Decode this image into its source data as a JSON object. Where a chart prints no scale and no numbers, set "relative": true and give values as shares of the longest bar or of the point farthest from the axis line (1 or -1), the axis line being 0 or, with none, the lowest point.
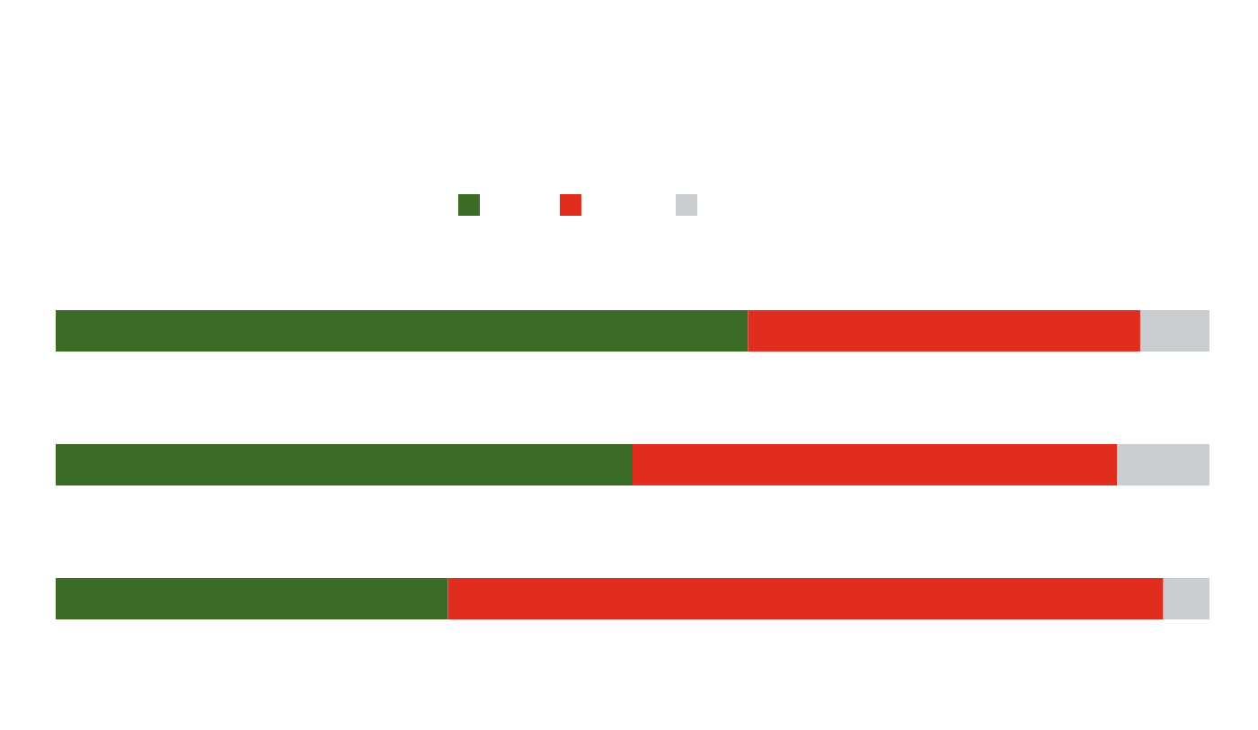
{
  "chart_data": {
    "type": "bar",
    "orientation": "horizontal",
    "stacked": true,
    "relative": true,
    "categories": [
      null,
      null,
      null
    ],
    "series": [
      {
        "color": "#3c6b28",
        "values": [
          0.6,
          0.5,
          0.34
        ]
      },
      {
        "color": "#e12d1e",
        "values": [
          0.34,
          0.42,
          0.62
        ]
      },
      {
        "color": "#cbced1",
        "values": [
          0.06,
          0.08,
          0.04
        ]
      }
    ]
  }
}
